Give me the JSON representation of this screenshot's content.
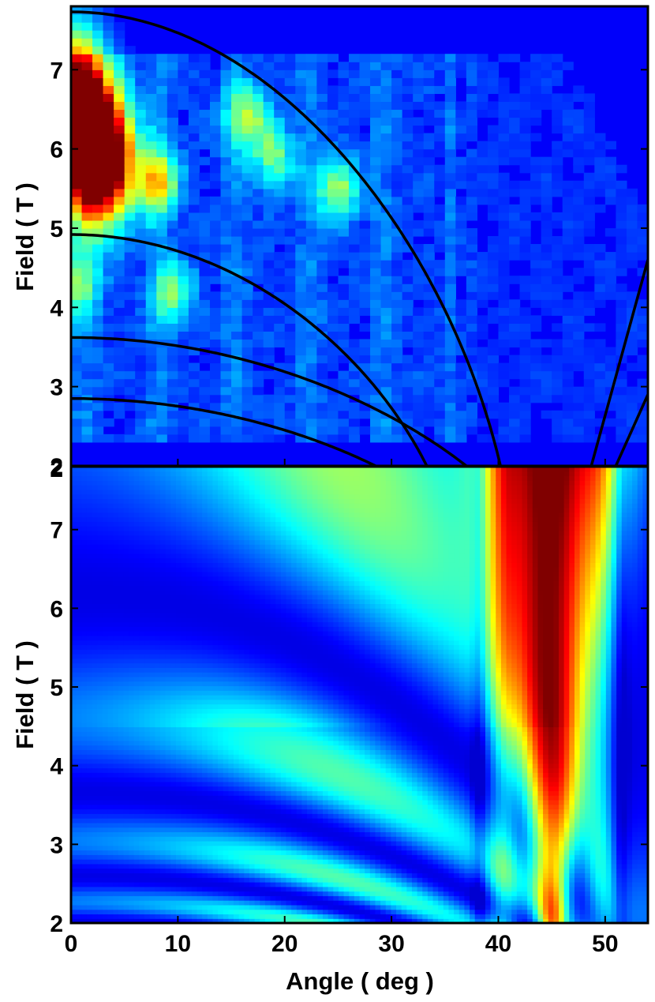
{
  "chart_data": [
    {
      "type": "heatmap",
      "panel": "top",
      "xlabel": "",
      "ylabel": "Field ( T )",
      "xlim": [
        0,
        54
      ],
      "ylim": [
        2,
        7.8
      ],
      "yticks": [
        2,
        3,
        4,
        5,
        6,
        7
      ],
      "colormap": "jet",
      "description_of_values": "measured intensity, pixelated grid; max near angle 0-3 deg, field 5.8-6.3 T",
      "hotspots": [
        {
          "x": 1.5,
          "y": 6.0,
          "level": 1.0
        },
        {
          "x": 3.5,
          "y": 5.9,
          "level": 0.75
        },
        {
          "x": 0.5,
          "y": 6.8,
          "level": 0.7
        },
        {
          "x": 8.0,
          "y": 5.6,
          "level": 0.45
        },
        {
          "x": 16.5,
          "y": 6.4,
          "level": 0.35
        },
        {
          "x": 25.0,
          "y": 5.5,
          "level": 0.35
        },
        {
          "x": 19.0,
          "y": 5.9,
          "level": 0.3
        },
        {
          "x": 9.5,
          "y": 4.2,
          "level": 0.3
        },
        {
          "x": 0.5,
          "y": 4.3,
          "level": 0.3
        }
      ],
      "overlay_curves": [
        {
          "type": "arc",
          "b0": 7.73,
          "angle_at_bmin": 40.2
        },
        {
          "type": "arc",
          "b0": 4.92,
          "angle_at_bmin": 33.3
        },
        {
          "type": "arc",
          "b0": 3.62,
          "angle_at_bmin": 37.0
        },
        {
          "type": "arc",
          "b0": 2.85,
          "angle_at_bmin": 28.5
        },
        {
          "type": "line",
          "points": [
            [
              48.7,
              2.0
            ],
            [
              54,
              4.6
            ]
          ]
        },
        {
          "type": "line",
          "points": [
            [
              51.0,
              2.0
            ],
            [
              54,
              2.9
            ]
          ]
        }
      ]
    },
    {
      "type": "heatmap",
      "panel": "bottom",
      "xlabel": "Angle ( deg )",
      "ylabel": "Field ( T )",
      "xlim": [
        0,
        54
      ],
      "ylim": [
        2,
        7.8
      ],
      "xticks": [
        0,
        10,
        20,
        30,
        40,
        50
      ],
      "yticks": [
        2,
        3,
        4,
        5,
        6,
        7
      ],
      "top_tick_label_shown": "2",
      "colormap": "jet",
      "description_of_values": "simulated intensity; oscillatory arcs decreasing with angle, strong red/dark-red peak centered near 45 deg across full field range",
      "peak": {
        "x": 45,
        "y": 7.6,
        "level": 1.0
      }
    }
  ]
}
